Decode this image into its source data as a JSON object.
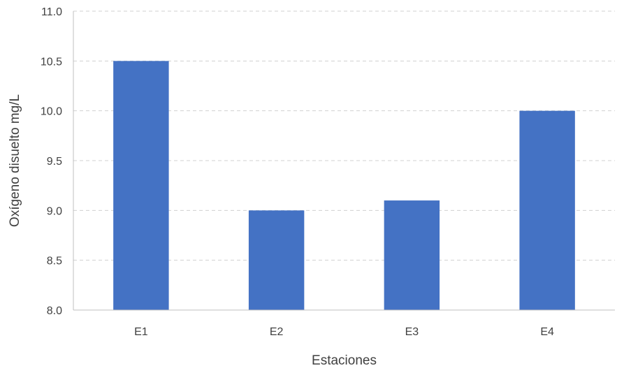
{
  "chart_data": {
    "type": "bar",
    "categories": [
      "E1",
      "E2",
      "E3",
      "E4"
    ],
    "values": [
      10.5,
      9.0,
      9.1,
      10.0
    ],
    "title": "",
    "xlabel": "Estaciones",
    "ylabel": "Oxígeno disuelto mg/L",
    "ylim": [
      8.0,
      11.0
    ],
    "yticks": [
      "8.0",
      "8.5",
      "9.0",
      "9.5",
      "10.0",
      "10.5",
      "11.0"
    ],
    "grid": true,
    "legend": "none",
    "bar_color": "#4472C4"
  }
}
